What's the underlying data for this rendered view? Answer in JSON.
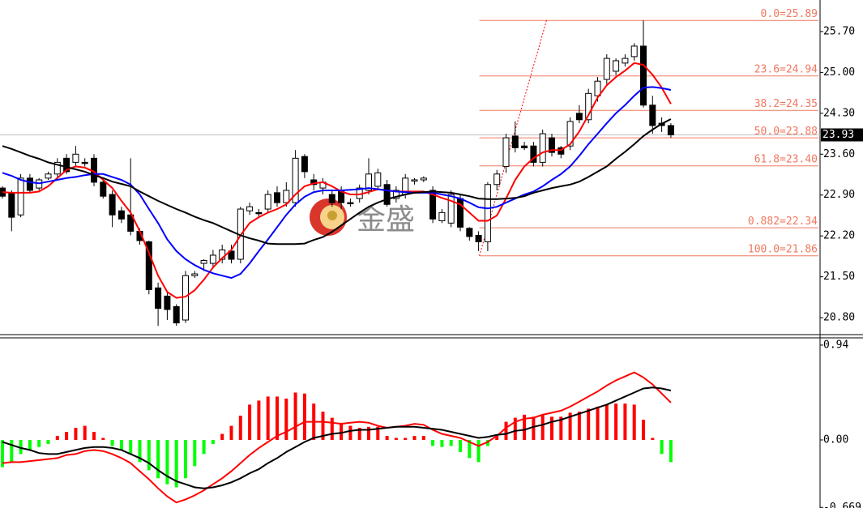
{
  "chart_data": [
    {
      "type": "candlestick",
      "watermark": "金盛",
      "up_color": "#ffffff",
      "down_color": "#000000",
      "wick_color": "#000000",
      "ohlc": [
        [
          23.02,
          23.05,
          22.84,
          22.88
        ],
        [
          22.94,
          22.98,
          22.28,
          22.52
        ],
        [
          22.56,
          23.26,
          22.52,
          23.19
        ],
        [
          23.19,
          23.26,
          22.94,
          22.98
        ],
        [
          23.02,
          23.19,
          22.98,
          23.16
        ],
        [
          23.19,
          23.3,
          23.16,
          23.26
        ],
        [
          23.26,
          23.53,
          23.19,
          23.46
        ],
        [
          23.53,
          23.6,
          23.26,
          23.3
        ],
        [
          23.46,
          23.74,
          23.39,
          23.6
        ],
        [
          23.46,
          23.53,
          23.39,
          23.44
        ],
        [
          23.53,
          23.6,
          23.05,
          23.12
        ],
        [
          23.12,
          23.16,
          22.84,
          22.88
        ],
        [
          22.91,
          22.98,
          22.35,
          22.56
        ],
        [
          22.63,
          22.7,
          22.42,
          22.49
        ],
        [
          22.56,
          23.53,
          22.21,
          22.28
        ],
        [
          22.28,
          22.33,
          22.05,
          22.12
        ],
        [
          22.1,
          22.12,
          21.2,
          21.28
        ],
        [
          21.31,
          21.4,
          20.66,
          20.96
        ],
        [
          21.17,
          21.24,
          20.76,
          20.94
        ],
        [
          20.99,
          21.03,
          20.66,
          20.71
        ],
        [
          20.76,
          21.6,
          20.71,
          21.52
        ],
        [
          21.52,
          21.6,
          21.48,
          21.55
        ],
        [
          21.73,
          21.8,
          21.6,
          21.78
        ],
        [
          21.73,
          21.96,
          21.66,
          21.87
        ],
        [
          21.8,
          22.05,
          21.73,
          21.96
        ],
        [
          21.94,
          22.05,
          21.73,
          21.8
        ],
        [
          21.8,
          22.7,
          21.73,
          22.66
        ],
        [
          22.63,
          22.77,
          22.56,
          22.7
        ],
        [
          22.6,
          22.66,
          22.52,
          22.58
        ],
        [
          22.66,
          22.98,
          22.6,
          22.91
        ],
        [
          22.94,
          23.05,
          22.7,
          22.77
        ],
        [
          22.77,
          23.12,
          22.7,
          22.98
        ],
        [
          22.77,
          23.67,
          22.7,
          23.53
        ],
        [
          23.56,
          23.6,
          23.19,
          23.3
        ],
        [
          23.16,
          23.26,
          22.98,
          23.08
        ],
        [
          23.02,
          23.19,
          22.91,
          23.12
        ],
        [
          22.91,
          22.98,
          22.7,
          22.77
        ],
        [
          22.98,
          23.05,
          22.66,
          22.77
        ],
        [
          22.77,
          22.84,
          22.7,
          22.75
        ],
        [
          22.84,
          23.08,
          22.77,
          23.02
        ],
        [
          22.98,
          23.53,
          22.91,
          23.26
        ],
        [
          23.05,
          23.35,
          22.98,
          23.28
        ],
        [
          23.08,
          23.16,
          22.7,
          22.74
        ],
        [
          22.84,
          23.05,
          22.77,
          22.98
        ],
        [
          22.91,
          23.26,
          22.84,
          23.19
        ],
        [
          23.14,
          23.19,
          23.08,
          23.16
        ],
        [
          23.16,
          23.22,
          23.12,
          23.19
        ],
        [
          22.98,
          23.05,
          22.42,
          22.49
        ],
        [
          22.46,
          22.66,
          22.42,
          22.6
        ],
        [
          22.42,
          22.98,
          22.35,
          22.91
        ],
        [
          22.84,
          22.91,
          22.28,
          22.35
        ],
        [
          22.33,
          22.35,
          22.12,
          22.19
        ],
        [
          22.21,
          22.28,
          21.94,
          22.1
        ],
        [
          22.1,
          23.12,
          21.94,
          23.08
        ],
        [
          23.08,
          23.33,
          22.98,
          23.26
        ],
        [
          23.39,
          23.95,
          23.28,
          23.88
        ],
        [
          23.91,
          24.16,
          23.63,
          23.71
        ],
        [
          23.74,
          23.81,
          23.67,
          23.71
        ],
        [
          23.74,
          23.81,
          23.39,
          23.46
        ],
        [
          23.46,
          24.02,
          23.39,
          23.95
        ],
        [
          23.88,
          23.95,
          23.56,
          23.63
        ],
        [
          23.71,
          23.74,
          23.53,
          23.6
        ],
        [
          23.74,
          24.23,
          23.67,
          24.16
        ],
        [
          24.3,
          24.44,
          24.13,
          24.19
        ],
        [
          24.19,
          24.72,
          24.13,
          24.64
        ],
        [
          24.6,
          24.92,
          24.5,
          24.85
        ],
        [
          24.88,
          25.31,
          24.78,
          25.24
        ],
        [
          25.02,
          25.24,
          24.95,
          25.2
        ],
        [
          25.16,
          25.31,
          25.1,
          25.24
        ],
        [
          25.27,
          25.5,
          25.2,
          25.45
        ],
        [
          25.45,
          25.89,
          24.4,
          24.44
        ],
        [
          24.44,
          24.6,
          23.95,
          24.09
        ],
        [
          24.13,
          24.23,
          23.98,
          24.09
        ],
        [
          24.09,
          24.13,
          23.88,
          23.93
        ]
      ],
      "lines": [
        {
          "color": "#ff0000",
          "values": [
            22.95,
            22.94,
            22.94,
            22.94,
            22.96,
            23.05,
            23.19,
            23.33,
            23.39,
            23.37,
            23.3,
            23.16,
            23.02,
            22.8,
            22.6,
            22.28,
            21.91,
            21.52,
            21.24,
            21.14,
            21.16,
            21.27,
            21.45,
            21.66,
            21.82,
            21.96,
            22.21,
            22.42,
            22.52,
            22.6,
            22.66,
            22.74,
            22.91,
            23.05,
            23.1,
            23.12,
            23.05,
            22.96,
            22.91,
            22.91,
            22.95,
            23.0,
            22.98,
            22.96,
            22.96,
            22.96,
            22.96,
            22.91,
            22.85,
            22.8,
            22.74,
            22.6,
            22.46,
            22.46,
            22.55,
            22.84,
            23.16,
            23.39,
            23.53,
            23.63,
            23.67,
            23.67,
            23.77,
            23.99,
            24.27,
            24.57,
            24.78,
            24.92,
            25.03,
            25.16,
            25.13,
            24.96,
            24.74,
            24.46
          ]
        },
        {
          "color": "#0000ff",
          "values": [
            23.28,
            23.23,
            23.16,
            23.12,
            23.1,
            23.13,
            23.16,
            23.19,
            23.21,
            23.24,
            23.26,
            23.26,
            23.21,
            23.16,
            23.08,
            22.91,
            22.66,
            22.42,
            22.14,
            21.94,
            21.8,
            21.7,
            21.62,
            21.56,
            21.52,
            21.48,
            21.55,
            21.73,
            21.94,
            22.14,
            22.35,
            22.56,
            22.74,
            22.87,
            22.95,
            22.98,
            22.98,
            22.98,
            22.99,
            23.0,
            23.02,
            23.0,
            22.98,
            22.96,
            22.95,
            22.94,
            22.94,
            22.94,
            22.91,
            22.88,
            22.84,
            22.77,
            22.69,
            22.67,
            22.7,
            22.77,
            22.84,
            22.91,
            22.96,
            23.05,
            23.16,
            23.26,
            23.39,
            23.57,
            23.77,
            23.95,
            24.13,
            24.3,
            24.44,
            24.6,
            24.74,
            24.75,
            24.73,
            24.7
          ]
        },
        {
          "color": "#000000",
          "values": [
            23.74,
            23.69,
            23.63,
            23.57,
            23.52,
            23.46,
            23.42,
            23.38,
            23.34,
            23.3,
            23.24,
            23.19,
            23.13,
            23.09,
            23.05,
            22.96,
            22.88,
            22.8,
            22.73,
            22.66,
            22.6,
            22.53,
            22.47,
            22.42,
            22.35,
            22.28,
            22.21,
            22.16,
            22.12,
            22.07,
            22.06,
            22.06,
            22.06,
            22.07,
            22.13,
            22.18,
            22.27,
            22.38,
            22.49,
            22.6,
            22.7,
            22.77,
            22.83,
            22.87,
            22.91,
            22.94,
            22.95,
            22.96,
            22.95,
            22.94,
            22.91,
            22.88,
            22.84,
            22.83,
            22.83,
            22.84,
            22.85,
            22.88,
            22.94,
            22.98,
            23.02,
            23.05,
            23.08,
            23.13,
            23.21,
            23.3,
            23.39,
            23.52,
            23.64,
            23.77,
            23.91,
            24.02,
            24.12,
            24.2
          ]
        }
      ],
      "fib_color": "#f07860",
      "fib_levels": [
        {
          "value": 25.89,
          "label": "0.0=25.89"
        },
        {
          "value": 24.94,
          "label": "23.6=24.94"
        },
        {
          "value": 24.35,
          "label": "38.2=24.35"
        },
        {
          "value": 23.88,
          "label": "50.0=23.88"
        },
        {
          "value": 23.4,
          "label": "61.8=23.40"
        },
        {
          "value": 22.34,
          "label": "0.882=22.34"
        },
        {
          "value": 21.86,
          "label": "100.0=21.86"
        }
      ],
      "last_price": 23.93,
      "ylim": [
        20.51,
        26.24
      ],
      "yticks": [
        {
          "value": 25.7,
          "label": "25.70"
        },
        {
          "value": 25,
          "label": "25.00"
        },
        {
          "value": 24.3,
          "label": "24.30"
        },
        {
          "value": 23.6,
          "label": "23.60"
        },
        {
          "value": 22.9,
          "label": "22.90"
        },
        {
          "value": 22.2,
          "label": "22.20"
        },
        {
          "value": 21.5,
          "label": "21.50"
        },
        {
          "value": 20.8,
          "label": "20.80"
        }
      ]
    },
    {
      "type": "macd",
      "pos_color": "#ff0000",
      "neg_color": "#00ff00",
      "histogram": [
        -0.27,
        -0.22,
        -0.14,
        -0.1,
        -0.07,
        -0.04,
        0.04,
        0.08,
        0.12,
        0.14,
        0.08,
        0.02,
        -0.06,
        -0.1,
        -0.14,
        -0.22,
        -0.3,
        -0.38,
        -0.44,
        -0.47,
        -0.38,
        -0.26,
        -0.14,
        -0.04,
        0.06,
        0.14,
        0.24,
        0.35,
        0.39,
        0.43,
        0.43,
        0.41,
        0.47,
        0.46,
        0.36,
        0.28,
        0.22,
        0.17,
        0.14,
        0.12,
        0.13,
        0.13,
        0.04,
        0.02,
        0.02,
        0.04,
        0.04,
        -0.06,
        -0.07,
        -0.06,
        -0.12,
        -0.18,
        -0.22,
        -0.06,
        0.04,
        0.18,
        0.22,
        0.25,
        0.23,
        0.25,
        0.23,
        0.23,
        0.27,
        0.28,
        0.31,
        0.33,
        0.35,
        0.36,
        0.36,
        0.35,
        0.2,
        0.02,
        -0.14,
        -0.22
      ],
      "lines": [
        {
          "color": "#ff0000",
          "values": [
            -0.23,
            -0.22,
            -0.22,
            -0.21,
            -0.2,
            -0.19,
            -0.18,
            -0.15,
            -0.14,
            -0.11,
            -0.1,
            -0.11,
            -0.14,
            -0.18,
            -0.23,
            -0.31,
            -0.39,
            -0.48,
            -0.56,
            -0.62,
            -0.59,
            -0.55,
            -0.5,
            -0.44,
            -0.38,
            -0.31,
            -0.23,
            -0.15,
            -0.08,
            -0.02,
            0.04,
            0.08,
            0.13,
            0.18,
            0.18,
            0.18,
            0.17,
            0.16,
            0.17,
            0.18,
            0.17,
            0.14,
            0.12,
            0.13,
            0.14,
            0.16,
            0.15,
            0.1,
            0.06,
            0.04,
            0.02,
            -0.02,
            -0.06,
            -0.02,
            0.04,
            0.12,
            0.18,
            0.21,
            0.22,
            0.25,
            0.27,
            0.29,
            0.33,
            0.38,
            0.43,
            0.48,
            0.54,
            0.59,
            0.63,
            0.67,
            0.62,
            0.55,
            0.46,
            0.37
          ]
        },
        {
          "color": "#000000",
          "values": [
            -0.02,
            -0.05,
            -0.08,
            -0.1,
            -0.13,
            -0.14,
            -0.14,
            -0.12,
            -0.1,
            -0.08,
            -0.07,
            -0.07,
            -0.08,
            -0.1,
            -0.14,
            -0.18,
            -0.23,
            -0.3,
            -0.36,
            -0.41,
            -0.44,
            -0.47,
            -0.48,
            -0.47,
            -0.45,
            -0.42,
            -0.38,
            -0.33,
            -0.29,
            -0.23,
            -0.18,
            -0.12,
            -0.07,
            -0.02,
            0.02,
            0.04,
            0.06,
            0.07,
            0.09,
            0.1,
            0.1,
            0.11,
            0.12,
            0.13,
            0.13,
            0.13,
            0.12,
            0.11,
            0.1,
            0.08,
            0.06,
            0.04,
            0.02,
            0.03,
            0.05,
            0.06,
            0.09,
            0.1,
            0.13,
            0.15,
            0.18,
            0.2,
            0.23,
            0.26,
            0.29,
            0.32,
            0.35,
            0.39,
            0.43,
            0.47,
            0.51,
            0.52,
            0.51,
            0.49
          ]
        }
      ],
      "ylim": [
        -0.675,
        1.012
      ],
      "yticks": [
        0.94,
        {
          "value": 0,
          "label": "0.00"
        },
        -0.669
      ]
    }
  ]
}
